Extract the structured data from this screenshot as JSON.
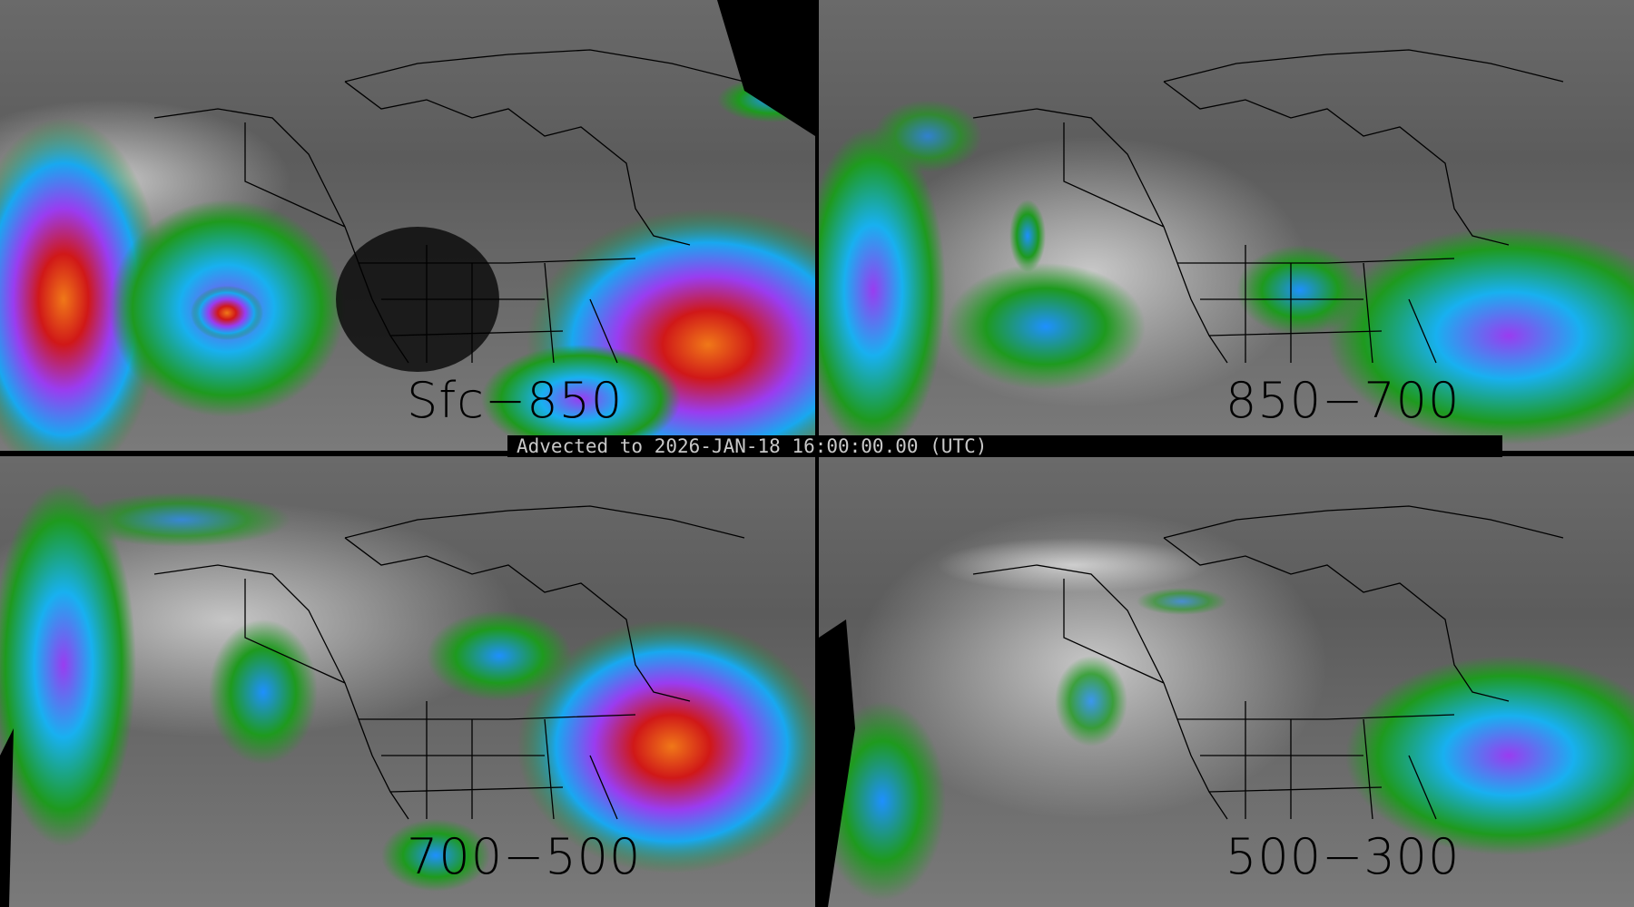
{
  "panels": [
    {
      "id": "top-left",
      "label": "Sfc−850"
    },
    {
      "id": "top-right",
      "label": "850−700"
    },
    {
      "id": "bottom-left",
      "label": "700−500"
    },
    {
      "id": "bottom-right",
      "label": "500−300"
    }
  ],
  "timestamp": "Advected to 2026-JAN-18 16:00:00.00 (UTC)",
  "colors": {
    "background_gray": "#5a5a5a",
    "green": "#1e9a1e",
    "blue": "#1e90ff",
    "cyan": "#18d0f0",
    "purple": "#9a3cf0",
    "red": "#d01818",
    "orange": "#f07818"
  }
}
